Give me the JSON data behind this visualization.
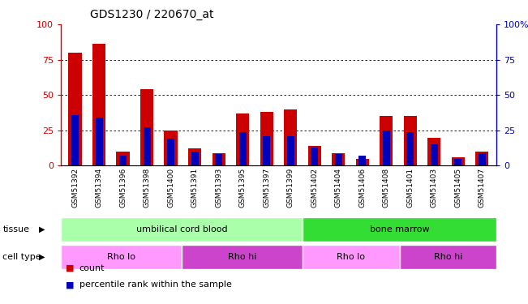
{
  "title": "GDS1230 / 220670_at",
  "samples": [
    "GSM51392",
    "GSM51394",
    "GSM51396",
    "GSM51398",
    "GSM51400",
    "GSM51391",
    "GSM51393",
    "GSM51395",
    "GSM51397",
    "GSM51399",
    "GSM51402",
    "GSM51404",
    "GSM51406",
    "GSM51408",
    "GSM51401",
    "GSM51403",
    "GSM51405",
    "GSM51407"
  ],
  "count_values": [
    80,
    86,
    10,
    54,
    25,
    12,
    9,
    37,
    38,
    40,
    14,
    9,
    5,
    35,
    35,
    20,
    6,
    10
  ],
  "percentile_values": [
    36,
    34,
    7,
    27,
    19,
    10,
    8,
    24,
    21,
    21,
    13,
    8,
    7,
    25,
    24,
    15,
    5,
    9
  ],
  "tissue_groups": [
    {
      "label": "umbilical cord blood",
      "start": 0,
      "end": 10,
      "color": "#AAFFAA"
    },
    {
      "label": "bone marrow",
      "start": 10,
      "end": 18,
      "color": "#33DD33"
    }
  ],
  "cell_type_groups": [
    {
      "label": "Rho lo",
      "start": 0,
      "end": 5,
      "color": "#FF99FF"
    },
    {
      "label": "Rho hi",
      "start": 5,
      "end": 10,
      "color": "#CC44CC"
    },
    {
      "label": "Rho lo",
      "start": 10,
      "end": 14,
      "color": "#FF99FF"
    },
    {
      "label": "Rho hi",
      "start": 14,
      "end": 18,
      "color": "#CC44CC"
    }
  ],
  "bar_color_red": "#CC0000",
  "bar_color_blue": "#0000BB",
  "left_axis_color": "#CC0000",
  "right_axis_color": "#0000BB",
  "ylim": [
    0,
    100
  ],
  "yticks": [
    0,
    25,
    50,
    75,
    100
  ],
  "right_ytick_labels": [
    "0",
    "25",
    "50",
    "75",
    "100%"
  ],
  "background_color": "#FFFFFF",
  "plot_bg": "#FFFFFF",
  "spine_color": "#888888"
}
